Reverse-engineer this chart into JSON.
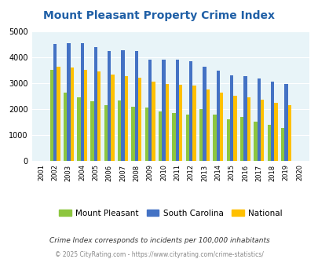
{
  "title": "Mount Pleasant Property Crime Index",
  "years": [
    2001,
    2002,
    2003,
    2004,
    2005,
    2006,
    2007,
    2008,
    2009,
    2010,
    2011,
    2012,
    2013,
    2014,
    2015,
    2016,
    2017,
    2018,
    2019,
    2020
  ],
  "mount_pleasant": [
    0,
    3500,
    2620,
    2430,
    2300,
    2140,
    2330,
    2090,
    2040,
    1890,
    1830,
    1770,
    1990,
    1780,
    1590,
    1670,
    1490,
    1380,
    1250,
    0
  ],
  "south_carolina": [
    0,
    4490,
    4540,
    4540,
    4370,
    4230,
    4260,
    4240,
    3900,
    3900,
    3900,
    3840,
    3620,
    3470,
    3290,
    3260,
    3180,
    3060,
    2960,
    0
  ],
  "national": [
    0,
    3630,
    3580,
    3510,
    3440,
    3330,
    3260,
    3190,
    3040,
    2960,
    2930,
    2890,
    2740,
    2610,
    2490,
    2450,
    2350,
    2220,
    2140,
    0
  ],
  "bar_width": 0.25,
  "colors": {
    "mount_pleasant": "#8DC63F",
    "south_carolina": "#4472C4",
    "national": "#FFC000"
  },
  "ylim": [
    0,
    5000
  ],
  "yticks": [
    0,
    1000,
    2000,
    3000,
    4000,
    5000
  ],
  "background_color": "#E8F4F8",
  "plot_bg": "#E8F4F8",
  "grid_color": "#ffffff",
  "title_color": "#1F5FA6",
  "legend_labels": [
    "Mount Pleasant",
    "South Carolina",
    "National"
  ],
  "footnote1": "Crime Index corresponds to incidents per 100,000 inhabitants",
  "footnote2": "© 2025 CityRating.com - https://www.cityrating.com/crime-statistics/",
  "footnote1_color": "#333333",
  "footnote2_color": "#888888"
}
